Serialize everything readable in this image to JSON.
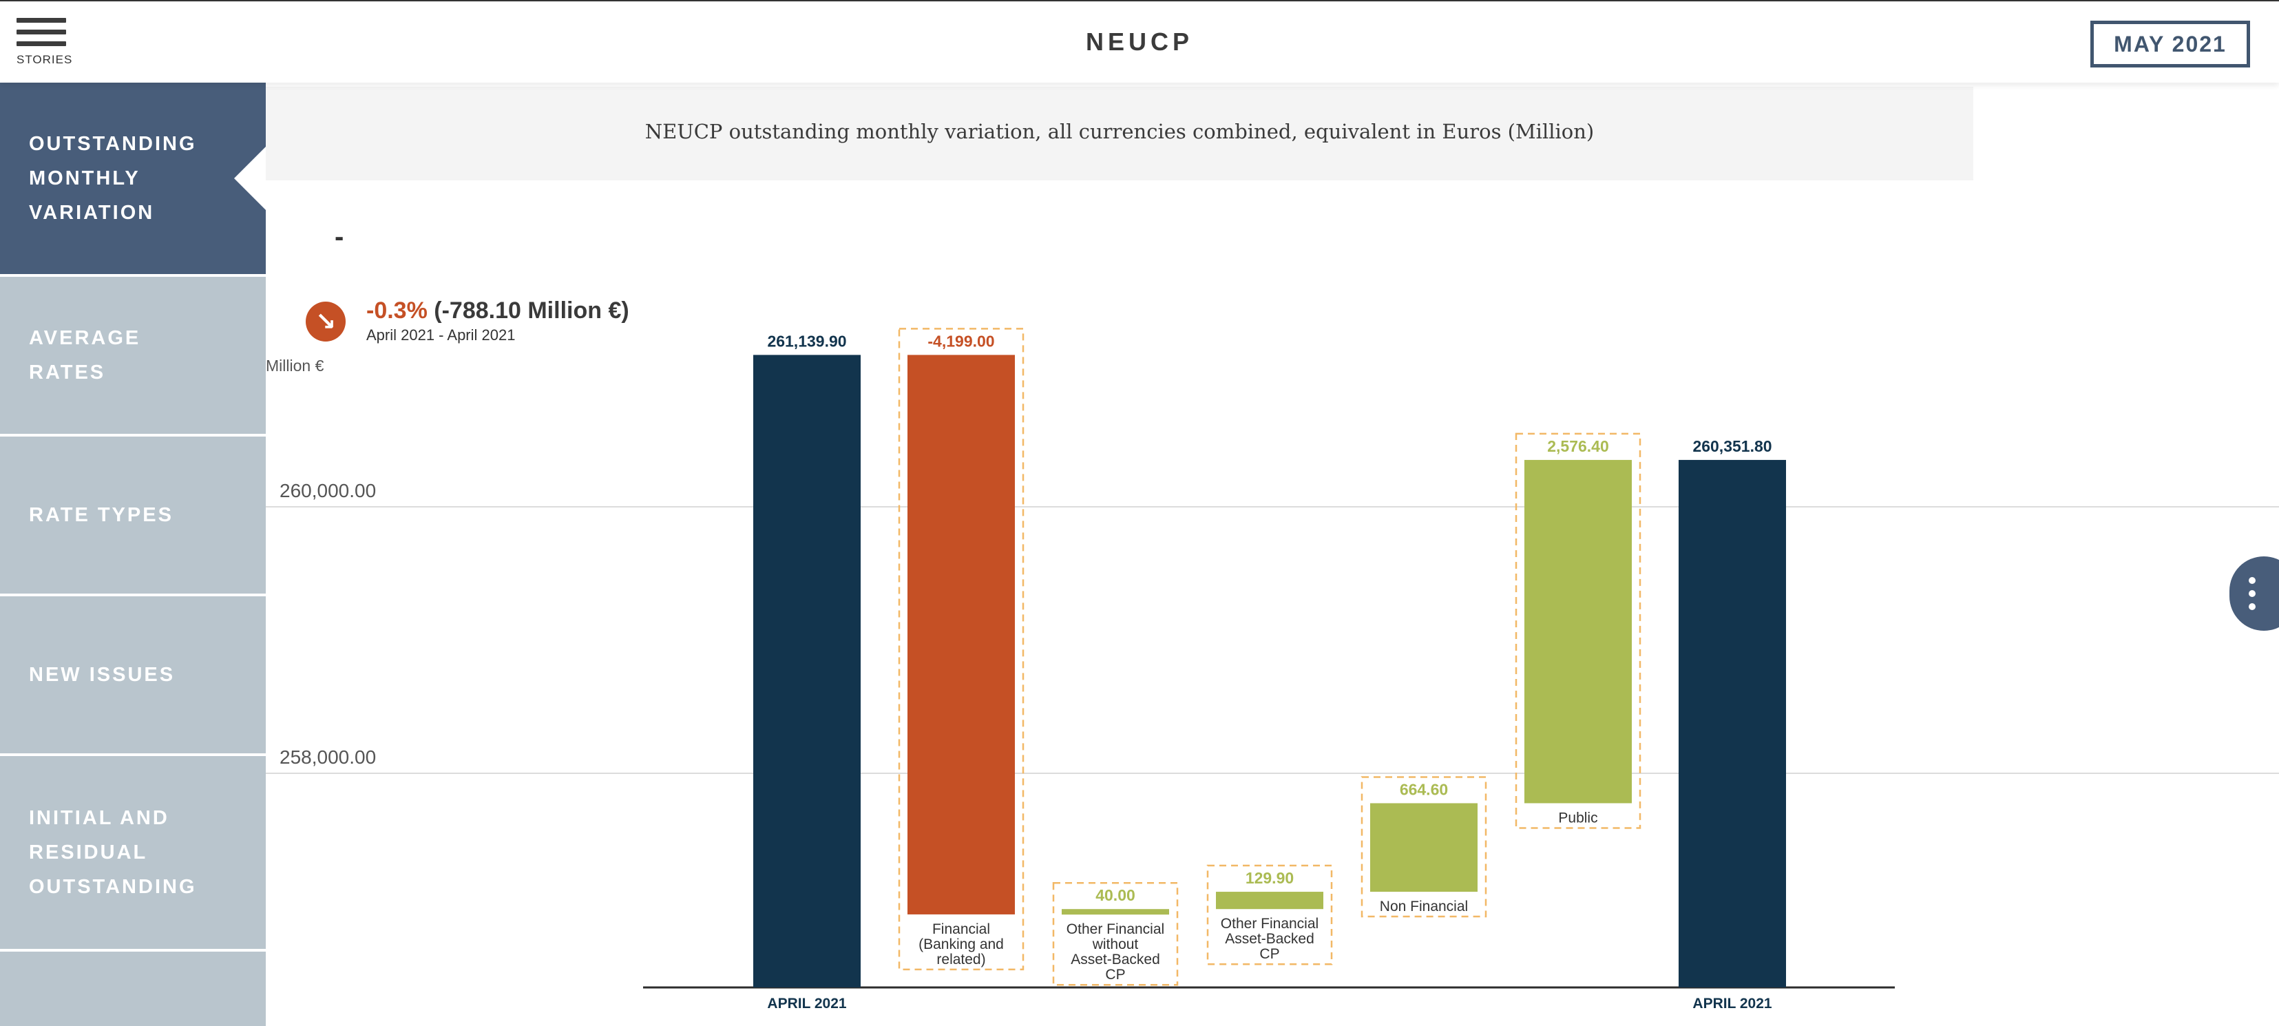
{
  "header": {
    "menu_label": "STORIES",
    "title": "NEUCP",
    "period": "MAY 2021"
  },
  "sidebar": {
    "items": [
      {
        "label": "OUTSTANDING MONTHLY VARIATION",
        "active": true
      },
      {
        "label": "AVERAGE RATES",
        "active": false
      },
      {
        "label": "RATE TYPES",
        "active": false
      },
      {
        "label": "NEW ISSUES",
        "active": false
      },
      {
        "label": "INITIAL AND RESIDUAL OUTSTANDING",
        "active": false
      },
      {
        "label": "",
        "active": false
      }
    ]
  },
  "main": {
    "subtitle": "NEUCP outstanding monthly variation, all currencies combined, equivalent in Euros (Million)",
    "dash": "-",
    "change_pct": "-0.3%",
    "change_abs": "(-788.10 Million €)",
    "change_period": "April 2021 - April 2021",
    "unit": "Million €",
    "trend_icon": "arrow-down-right-icon"
  },
  "colors": {
    "total": "#12344d",
    "decrease": "#c55025",
    "increase": "#abbb53",
    "highlight_border": "#f2b866",
    "sidebar_active": "#485d7a",
    "sidebar": "#b9c5cd"
  },
  "chart_data": {
    "type": "bar",
    "subtype": "waterfall",
    "categories": [
      "APRIL 2021",
      "Financial (Banking and related)",
      "Other Financial without Asset-Backed CP",
      "Other Financial Asset-Backed CP",
      "Non Financial",
      "Public",
      "APRIL 2021"
    ],
    "category_lines": [
      [
        "APRIL 2021"
      ],
      [
        "Financial",
        "(Banking and",
        "related)"
      ],
      [
        "Other Financial",
        "without",
        "Asset-Backed",
        "CP"
      ],
      [
        "Other Financial",
        "Asset-Backed",
        "CP"
      ],
      [
        "Non Financial"
      ],
      [
        "Public"
      ],
      [
        "APRIL 2021"
      ]
    ],
    "kinds": [
      "total",
      "delta",
      "delta",
      "delta",
      "delta",
      "delta",
      "total"
    ],
    "values": [
      261139.9,
      -4199.0,
      40.0,
      129.9,
      664.6,
      2576.4,
      260351.8
    ],
    "value_labels": [
      "261,139.90",
      "-4,199.00",
      "40.00",
      "129.90",
      "664.60",
      "2,576.40",
      "260,351.80"
    ],
    "yticks": [
      258000,
      260000
    ],
    "ytick_labels": [
      "258,000.00",
      "260,000.00"
    ],
    "ylim": [
      256500,
      261300
    ],
    "grid": true,
    "ylabel": "Million €"
  }
}
